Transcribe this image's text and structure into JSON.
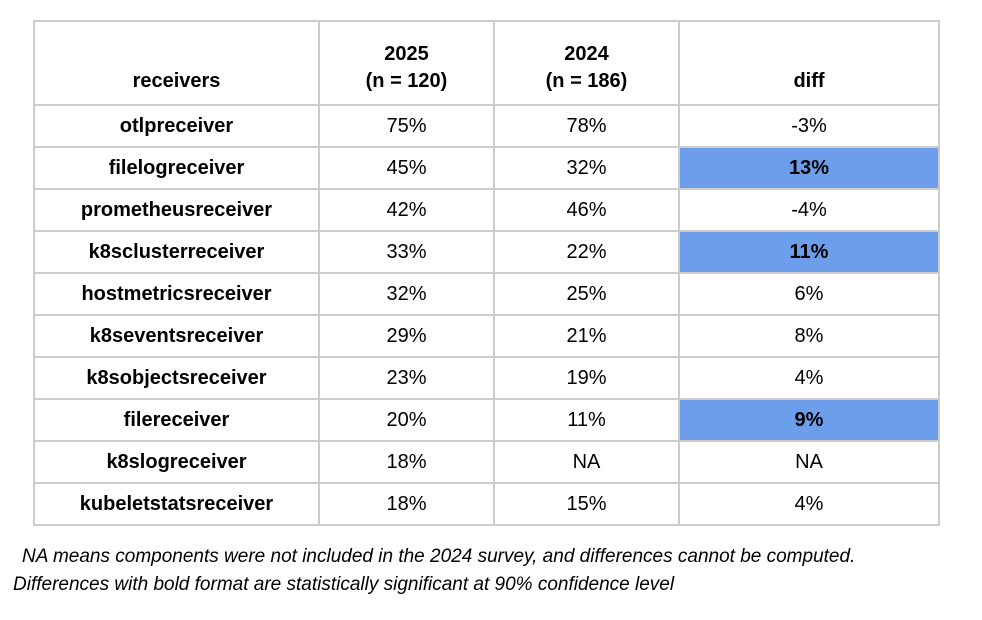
{
  "table": {
    "headers": {
      "receivers": "receivers",
      "y2025": "2025\n(n = 120)",
      "y2024": "2024\n(n = 186)",
      "diff": "diff"
    },
    "rows": [
      {
        "receiver": "otlpreceiver",
        "y2025": "75%",
        "y2024": "78%",
        "diff": "-3%",
        "diff_significant": false
      },
      {
        "receiver": "filelogreceiver",
        "y2025": "45%",
        "y2024": "32%",
        "diff": "13%",
        "diff_significant": true
      },
      {
        "receiver": "prometheusreceiver",
        "y2025": "42%",
        "y2024": "46%",
        "diff": "-4%",
        "diff_significant": false
      },
      {
        "receiver": "k8sclusterreceiver",
        "y2025": "33%",
        "y2024": "22%",
        "diff": "11%",
        "diff_significant": true
      },
      {
        "receiver": "hostmetricsreceiver",
        "y2025": "32%",
        "y2024": "25%",
        "diff": "6%",
        "diff_significant": false
      },
      {
        "receiver": "k8seventsreceiver",
        "y2025": "29%",
        "y2024": "21%",
        "diff": "8%",
        "diff_significant": false
      },
      {
        "receiver": "k8sobjectsreceiver",
        "y2025": "23%",
        "y2024": "19%",
        "diff": "4%",
        "diff_significant": false
      },
      {
        "receiver": "filereceiver",
        "y2025": "20%",
        "y2024": "11%",
        "diff": "9%",
        "diff_significant": true
      },
      {
        "receiver": "k8slogreceiver",
        "y2025": "18%",
        "y2024": "NA",
        "diff": "NA",
        "diff_significant": false
      },
      {
        "receiver": "kubeletstatsreceiver",
        "y2025": "18%",
        "y2024": "15%",
        "diff": "4%",
        "diff_significant": false
      }
    ]
  },
  "chart_data": {
    "type": "table",
    "columns": [
      "receivers",
      "2025 (n = 120)",
      "2024 (n = 186)",
      "diff"
    ],
    "rows": [
      [
        "otlpreceiver",
        "75%",
        "78%",
        "-3%"
      ],
      [
        "filelogreceiver",
        "45%",
        "32%",
        "13%"
      ],
      [
        "prometheusreceiver",
        "42%",
        "46%",
        "-4%"
      ],
      [
        "k8sclusterreceiver",
        "33%",
        "22%",
        "11%"
      ],
      [
        "hostmetricsreceiver",
        "32%",
        "25%",
        "6%"
      ],
      [
        "k8seventsreceiver",
        "29%",
        "21%",
        "8%"
      ],
      [
        "k8sobjectsreceiver",
        "23%",
        "19%",
        "4%"
      ],
      [
        "filereceiver",
        "20%",
        "11%",
        "9%"
      ],
      [
        "k8slogreceiver",
        "18%",
        "NA",
        "NA"
      ],
      [
        "kubeletstatsreceiver",
        "18%",
        "15%",
        "4%"
      ]
    ],
    "highlighted_diff_rows": [
      "filelogreceiver",
      "k8sclusterreceiver",
      "filereceiver"
    ],
    "highlight_meaning": "bold highlighted diff cells are statistically significant at 90% confidence level"
  },
  "footnotes": {
    "line1": "NA means components were not included in the 2024 survey, and differences cannot be computed.",
    "line2": "Differences with bold format are statistically significant at 90% confidence level"
  },
  "colors": {
    "significant_highlight": "#6D9EEB",
    "table_border": "#CCCCCC",
    "text": "#000000",
    "background": "#FFFFFF"
  }
}
